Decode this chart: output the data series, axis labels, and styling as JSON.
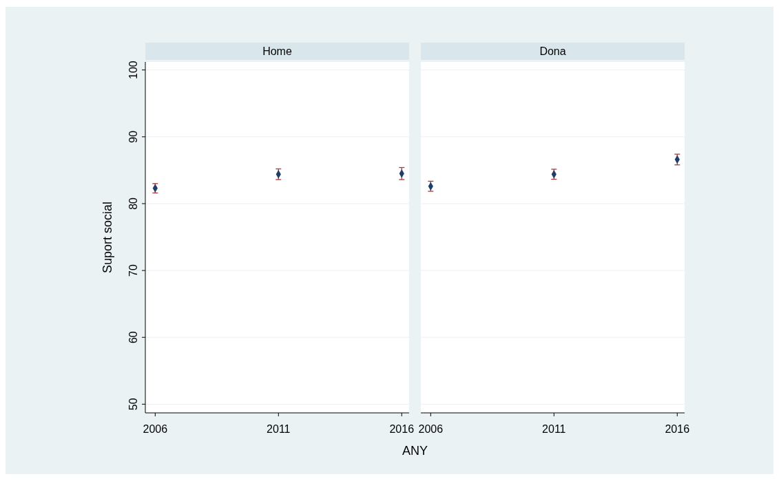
{
  "chart_data": [
    {
      "type": "scatter",
      "title": "Home",
      "xlabel": "ANY",
      "ylabel": "Suport social",
      "x": [
        2006,
        2011,
        2016
      ],
      "series": [
        {
          "color": "#1f3f6a",
          "values": [
            82.3,
            84.4,
            84.5
          ],
          "errors": [
            0.7,
            0.8,
            0.9
          ]
        }
      ],
      "xlim": [
        2005.6,
        2016.3
      ],
      "xticks": [
        2006,
        2011,
        2016
      ],
      "ylim": [
        48.7,
        101.2
      ],
      "yticks": [
        50,
        60,
        70,
        80,
        90,
        100
      ],
      "grid": "y",
      "marker": "diamond"
    },
    {
      "type": "scatter",
      "title": "Dona",
      "x": [
        2006,
        2011,
        2016
      ],
      "series": [
        {
          "color": "#1f3f6a",
          "values": [
            82.6,
            84.4,
            86.6
          ],
          "errors": [
            0.75,
            0.75,
            0.8
          ]
        }
      ],
      "xlim": [
        2005.6,
        2016.3
      ],
      "xticks": [
        2006,
        2011,
        2016
      ],
      "ylim": [
        48.7,
        101.2
      ],
      "yticks": [
        50,
        60,
        70,
        80,
        90,
        100
      ],
      "grid": "y",
      "marker": "diamond",
      "tick_labels": "x"
    }
  ]
}
